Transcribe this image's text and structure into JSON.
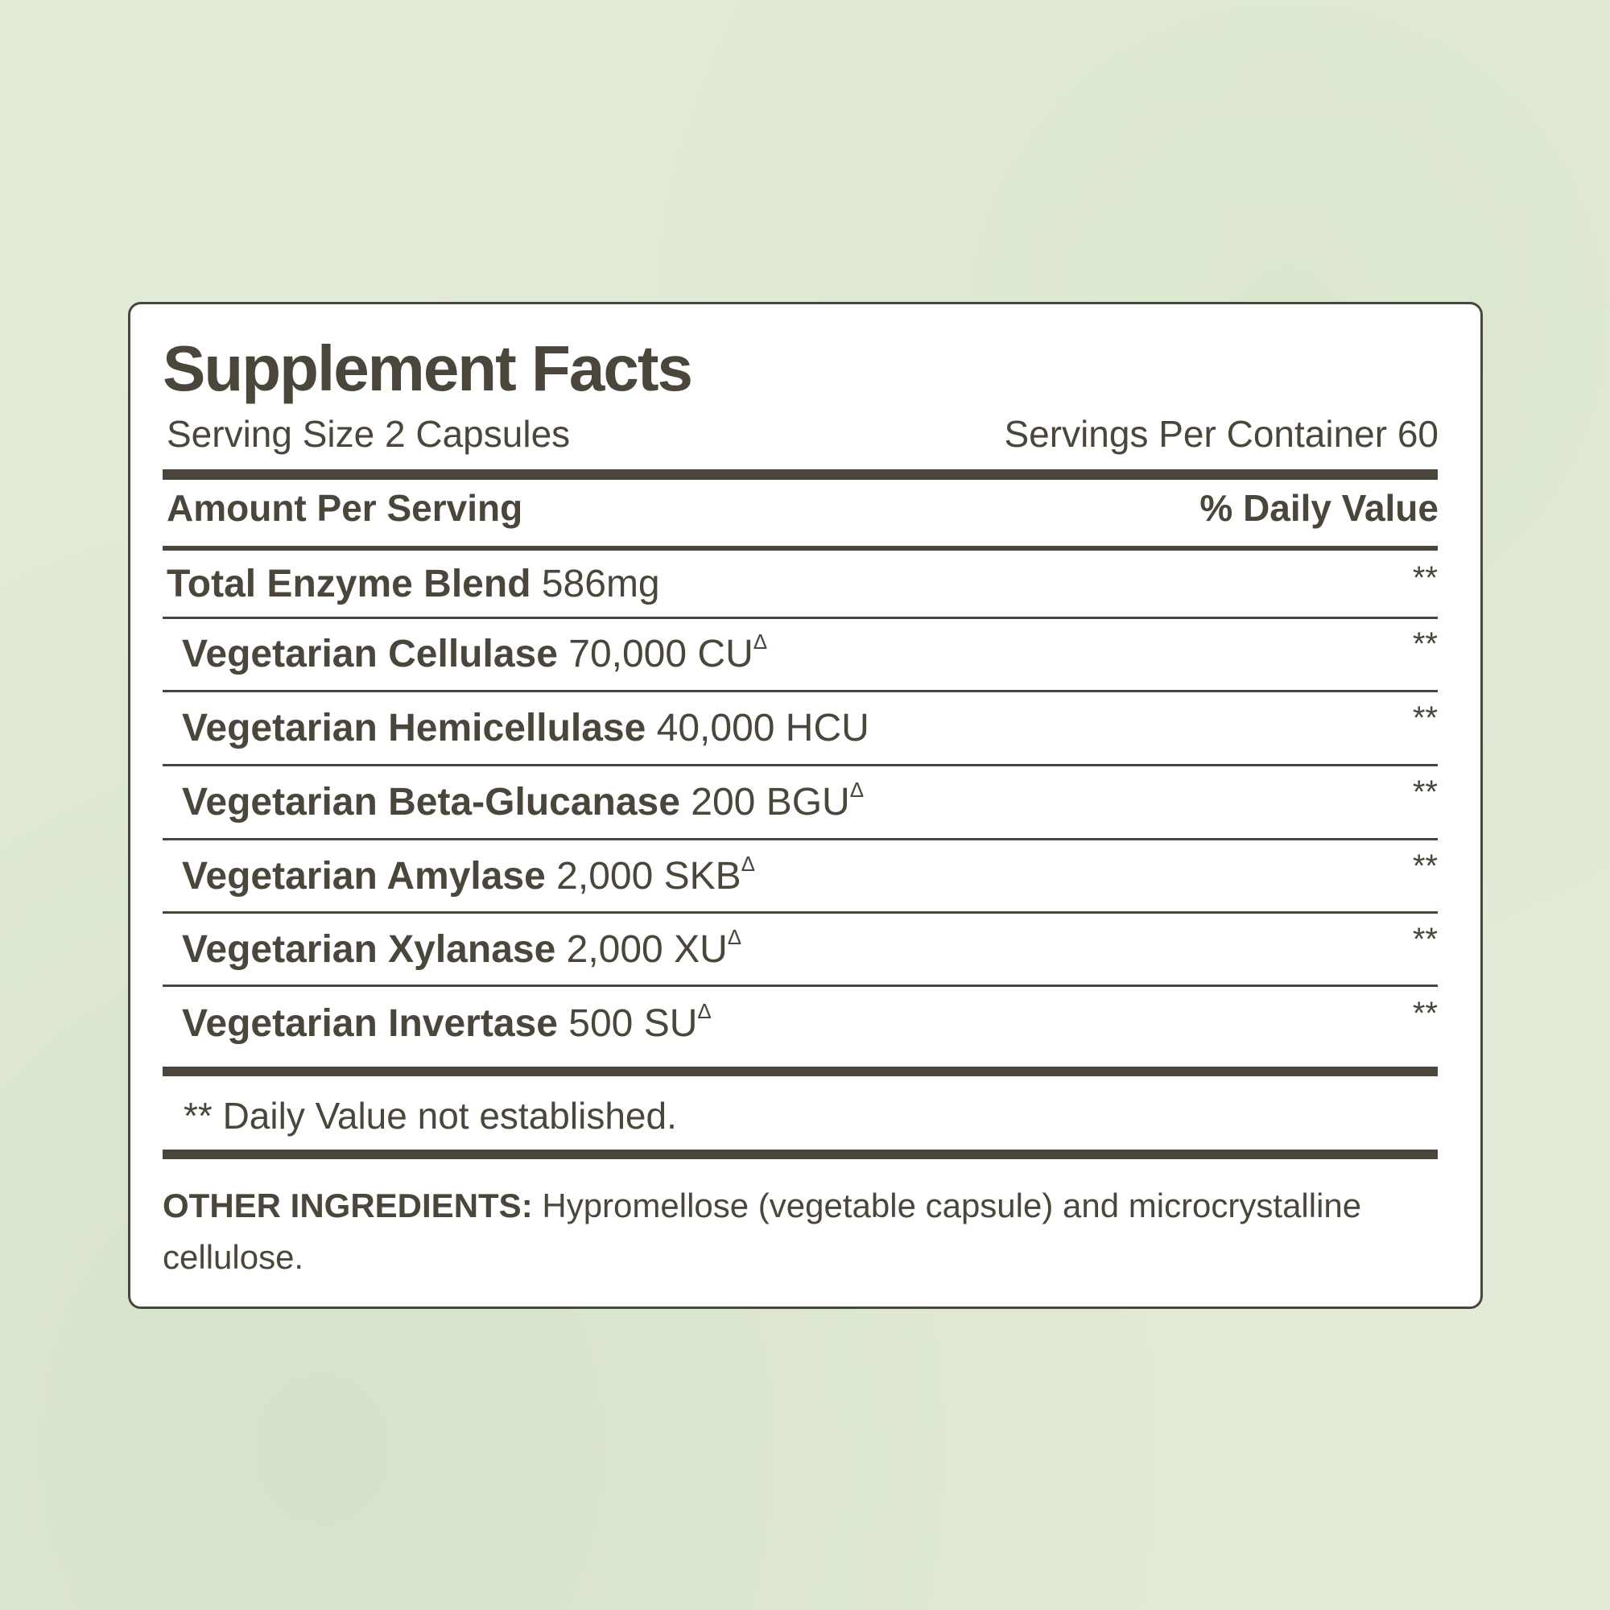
{
  "title": "Supplement Facts",
  "serving_size": "Serving Size 2 Capsules",
  "servings_per_container": "Servings Per Container 60",
  "header": {
    "amount": "Amount Per Serving",
    "daily_value": "% Daily Value"
  },
  "rows": [
    {
      "name": "Total Enzyme Blend",
      "amount": "586mg",
      "mark": "",
      "dv": "**"
    },
    {
      "name": "Vegetarian Cellulase",
      "amount": "70,000 CU",
      "mark": "Δ",
      "dv": "**"
    },
    {
      "name": "Vegetarian Hemicellulase",
      "amount": "40,000 HCU",
      "mark": "",
      "dv": "**"
    },
    {
      "name": "Vegetarian Beta-Glucanase",
      "amount": "200 BGU",
      "mark": "Δ",
      "dv": "**"
    },
    {
      "name": "Vegetarian Amylase",
      "amount": "2,000 SKB",
      "mark": "Δ",
      "dv": "**"
    },
    {
      "name": "Vegetarian Xylanase",
      "amount": "2,000 XU",
      "mark": "Δ",
      "dv": "**"
    },
    {
      "name": "Vegetarian Invertase",
      "amount": "500 SU",
      "mark": "Δ",
      "dv": "**"
    }
  ],
  "footnote": "** Daily Value not established.",
  "other_ingredients": {
    "label": "OTHER INGREDIENTS:",
    "text": "Hypromellose (vegetable capsule) and microcrystalline cellulose."
  },
  "colors": {
    "text": "#4a463b",
    "background": "#e2ebd8",
    "panel": "#ffffff"
  }
}
